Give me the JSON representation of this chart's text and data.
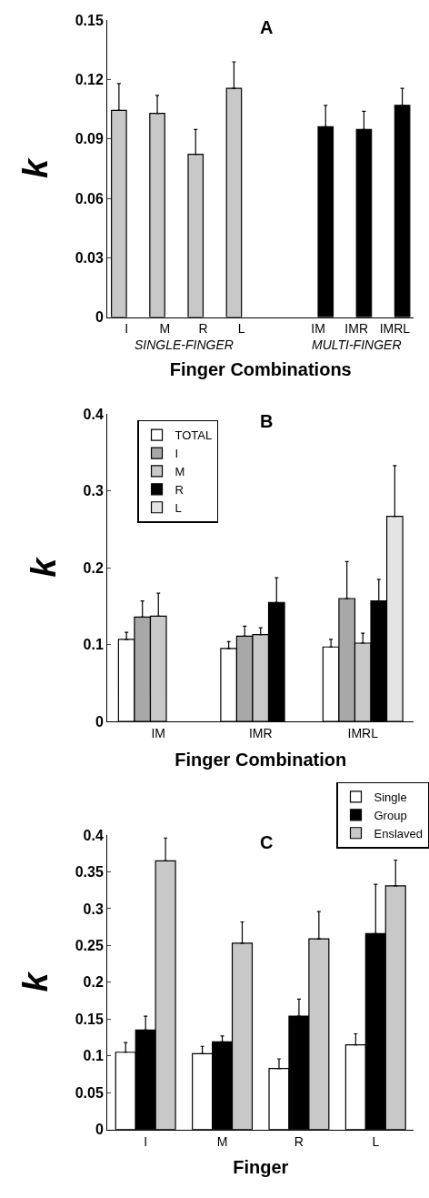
{
  "chart_data": [
    {
      "type": "bar",
      "title": "A",
      "xlabel": "Finger Combinations",
      "ylabel": "k",
      "categories": [
        "I",
        "M",
        "R",
        "L",
        null,
        "IM",
        "IMR",
        "IMRL"
      ],
      "series": [
        {
          "color": "#c8c8c8",
          "values": [
            0.1045,
            0.103,
            0.0823,
            0.1156,
            null,
            null,
            null,
            null
          ],
          "errors": [
            [
              0.1045,
              0.118
            ],
            [
              0.103,
              0.112
            ],
            [
              0.0823,
              0.0948
            ],
            [
              0.1156,
              0.129
            ],
            null,
            null,
            null,
            null
          ]
        },
        {
          "color": "#000000",
          "values": [
            null,
            null,
            null,
            null,
            null,
            0.0962,
            0.0948,
            0.107
          ],
          "errors": [
            null,
            null,
            null,
            null,
            null,
            [
              0.0962,
              0.107
            ],
            [
              0.0948,
              0.104
            ],
            [
              0.107,
              0.1156
            ]
          ]
        }
      ],
      "ylim": [
        0,
        0.15
      ],
      "yticks": [
        0,
        0.03,
        0.06,
        0.09,
        0.12,
        0.15
      ],
      "annotations": [
        "SINGLE-FINGER",
        "MULTI-FINGER"
      ]
    },
    {
      "type": "bar",
      "title": "B",
      "xlabel": "Finger Combination",
      "ylabel": "k",
      "categories": [
        "IM",
        "IMR",
        "IMRL"
      ],
      "series": [
        {
          "name": "TOTAL",
          "color": "#ffffff",
          "values": [
            0.107,
            0.095,
            0.097
          ],
          "errors": [
            [
              0.107,
              0.116
            ],
            [
              0.095,
              0.104
            ],
            [
              0.097,
              0.107
            ]
          ]
        },
        {
          "name": "I",
          "color": "#a8a8a8",
          "values": [
            0.136,
            0.111,
            0.16
          ],
          "errors": [
            [
              0.136,
              0.157
            ],
            [
              0.111,
              0.124
            ],
            [
              0.16,
              0.208
            ]
          ]
        },
        {
          "name": "M",
          "color": "#c8c8c8",
          "values": [
            0.137,
            0.113,
            0.102
          ],
          "errors": [
            [
              0.137,
              0.167
            ],
            [
              0.113,
              0.122
            ],
            [
              0.102,
              0.115
            ]
          ]
        },
        {
          "name": "R",
          "color": "#000000",
          "values": [
            null,
            0.155,
            0.157
          ],
          "errors": [
            null,
            [
              0.155,
              0.187
            ],
            [
              0.157,
              0.185
            ]
          ]
        },
        {
          "name": "L",
          "color": "#e4e4e4",
          "values": [
            null,
            null,
            0.267
          ],
          "errors": [
            null,
            null,
            [
              0.267,
              0.333
            ]
          ]
        }
      ],
      "ylim": [
        0,
        0.4
      ],
      "yticks": [
        0,
        0.1,
        0.2,
        0.3,
        0.4
      ],
      "legend": "top left"
    },
    {
      "type": "bar",
      "title": "C",
      "xlabel": "Finger",
      "ylabel": "k",
      "categories": [
        "I",
        "M",
        "R",
        "L"
      ],
      "series": [
        {
          "name": "Single",
          "color": "#ffffff",
          "values": [
            0.105,
            0.103,
            0.083,
            0.115
          ],
          "errors": [
            [
              0.105,
              0.118
            ],
            [
              0.103,
              0.113
            ],
            [
              0.083,
              0.096
            ],
            [
              0.115,
              0.13
            ]
          ]
        },
        {
          "name": "Group",
          "color": "#000000",
          "values": [
            0.135,
            0.119,
            0.154,
            0.266
          ],
          "errors": [
            [
              0.135,
              0.154
            ],
            [
              0.119,
              0.127
            ],
            [
              0.154,
              0.177
            ],
            [
              0.266,
              0.333
            ]
          ]
        },
        {
          "name": "Enslaved",
          "color": "#c8c8c8",
          "values": [
            0.365,
            0.253,
            0.259,
            0.331
          ],
          "errors": [
            [
              0.365,
              0.396
            ],
            [
              0.253,
              0.282
            ],
            [
              0.259,
              0.296
            ],
            [
              0.331,
              0.366
            ]
          ]
        }
      ],
      "ylim": [
        0,
        0.4
      ],
      "yticks": [
        0,
        0.05,
        0.1,
        0.15,
        0.2,
        0.25,
        0.3,
        0.35,
        0.4
      ],
      "legend": "top right"
    }
  ]
}
